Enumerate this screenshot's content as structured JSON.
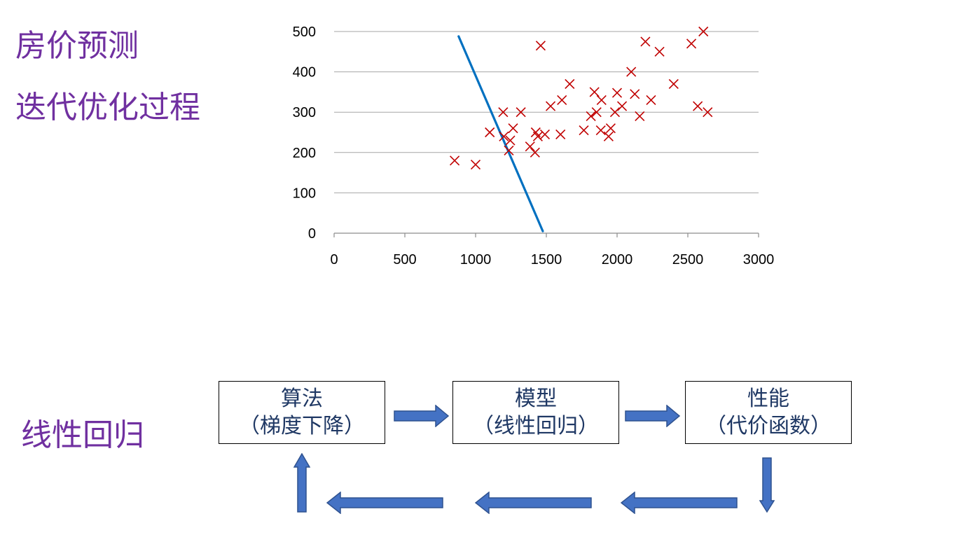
{
  "titles": {
    "line1": "房价预测",
    "line2": "迭代优化过程",
    "line3": "线性回归"
  },
  "colors": {
    "title": "#7030A0",
    "points": "#C00000",
    "fit_line": "#0070C0",
    "arrows": "#4472C4",
    "box_text": "#1F3864"
  },
  "chart_data": {
    "type": "scatter",
    "title": "",
    "xlabel": "",
    "ylabel": "",
    "xlim": [
      0,
      3000
    ],
    "ylim": [
      0,
      500
    ],
    "x_ticks": [
      0,
      500,
      1000,
      1500,
      2000,
      2500,
      3000
    ],
    "y_ticks": [
      0,
      100,
      200,
      300,
      400,
      500
    ],
    "grid": "horizontal",
    "series": [
      {
        "marker": "x",
        "points": [
          [
            852,
            180
          ],
          [
            1000,
            170
          ],
          [
            1100,
            250
          ],
          [
            1195,
            300
          ],
          [
            1200,
            240
          ],
          [
            1235,
            205
          ],
          [
            1245,
            230
          ],
          [
            1265,
            260
          ],
          [
            1320,
            300
          ],
          [
            1385,
            215
          ],
          [
            1420,
            200
          ],
          [
            1425,
            250
          ],
          [
            1440,
            240
          ],
          [
            1460,
            465
          ],
          [
            1490,
            245
          ],
          [
            1530,
            315
          ],
          [
            1600,
            245
          ],
          [
            1610,
            330
          ],
          [
            1665,
            370
          ],
          [
            1765,
            255
          ],
          [
            1815,
            290
          ],
          [
            1840,
            350
          ],
          [
            1855,
            300
          ],
          [
            1885,
            255
          ],
          [
            1890,
            330
          ],
          [
            1940,
            240
          ],
          [
            1955,
            260
          ],
          [
            1985,
            300
          ],
          [
            2000,
            348
          ],
          [
            2035,
            315
          ],
          [
            2100,
            400
          ],
          [
            2125,
            345
          ],
          [
            2160,
            290
          ],
          [
            2200,
            475
          ],
          [
            2240,
            330
          ],
          [
            2300,
            450
          ],
          [
            2400,
            370
          ],
          [
            2525,
            470
          ],
          [
            2570,
            315
          ],
          [
            2610,
            500
          ],
          [
            2640,
            300
          ]
        ]
      }
    ],
    "fit_line": [
      [
        880,
        488
      ],
      [
        1475,
        5
      ]
    ]
  },
  "flow": {
    "boxes": [
      {
        "line1": "算法",
        "line2": "（梯度下降）"
      },
      {
        "line1": "模型",
        "line2": "（线性回归）"
      },
      {
        "line1": "性能",
        "line2": "（代价函数）"
      }
    ]
  }
}
